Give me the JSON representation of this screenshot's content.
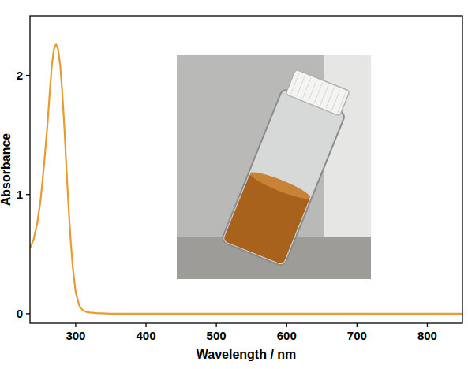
{
  "chart_data": {
    "type": "line",
    "x_label": "Wavelength / nm",
    "y_label": "Absorbance",
    "x": [
      235,
      240,
      245,
      250,
      255,
      260,
      263,
      266,
      269,
      272,
      275,
      278,
      281,
      284,
      287,
      290,
      293,
      296,
      300,
      305,
      310,
      315,
      320,
      330,
      350,
      400,
      450,
      500,
      550,
      600,
      650,
      700,
      750,
      800,
      850
    ],
    "series": [
      {
        "color": "#ea9a2e",
        "values": [
          0.55,
          0.62,
          0.75,
          0.95,
          1.25,
          1.6,
          1.85,
          2.08,
          2.22,
          2.26,
          2.22,
          2.08,
          1.85,
          1.55,
          1.2,
          0.88,
          0.6,
          0.38,
          0.18,
          0.07,
          0.03,
          0.015,
          0.01,
          0.005,
          0,
          0,
          0,
          0,
          0,
          0,
          0,
          0,
          0,
          0,
          0
        ]
      }
    ],
    "xlim": [
      235,
      850
    ],
    "ylim": [
      -0.08,
      2.5
    ],
    "xticks": [
      300,
      400,
      500,
      600,
      700,
      800
    ],
    "yticks": [
      0,
      1,
      2
    ],
    "grid": false
  }
}
